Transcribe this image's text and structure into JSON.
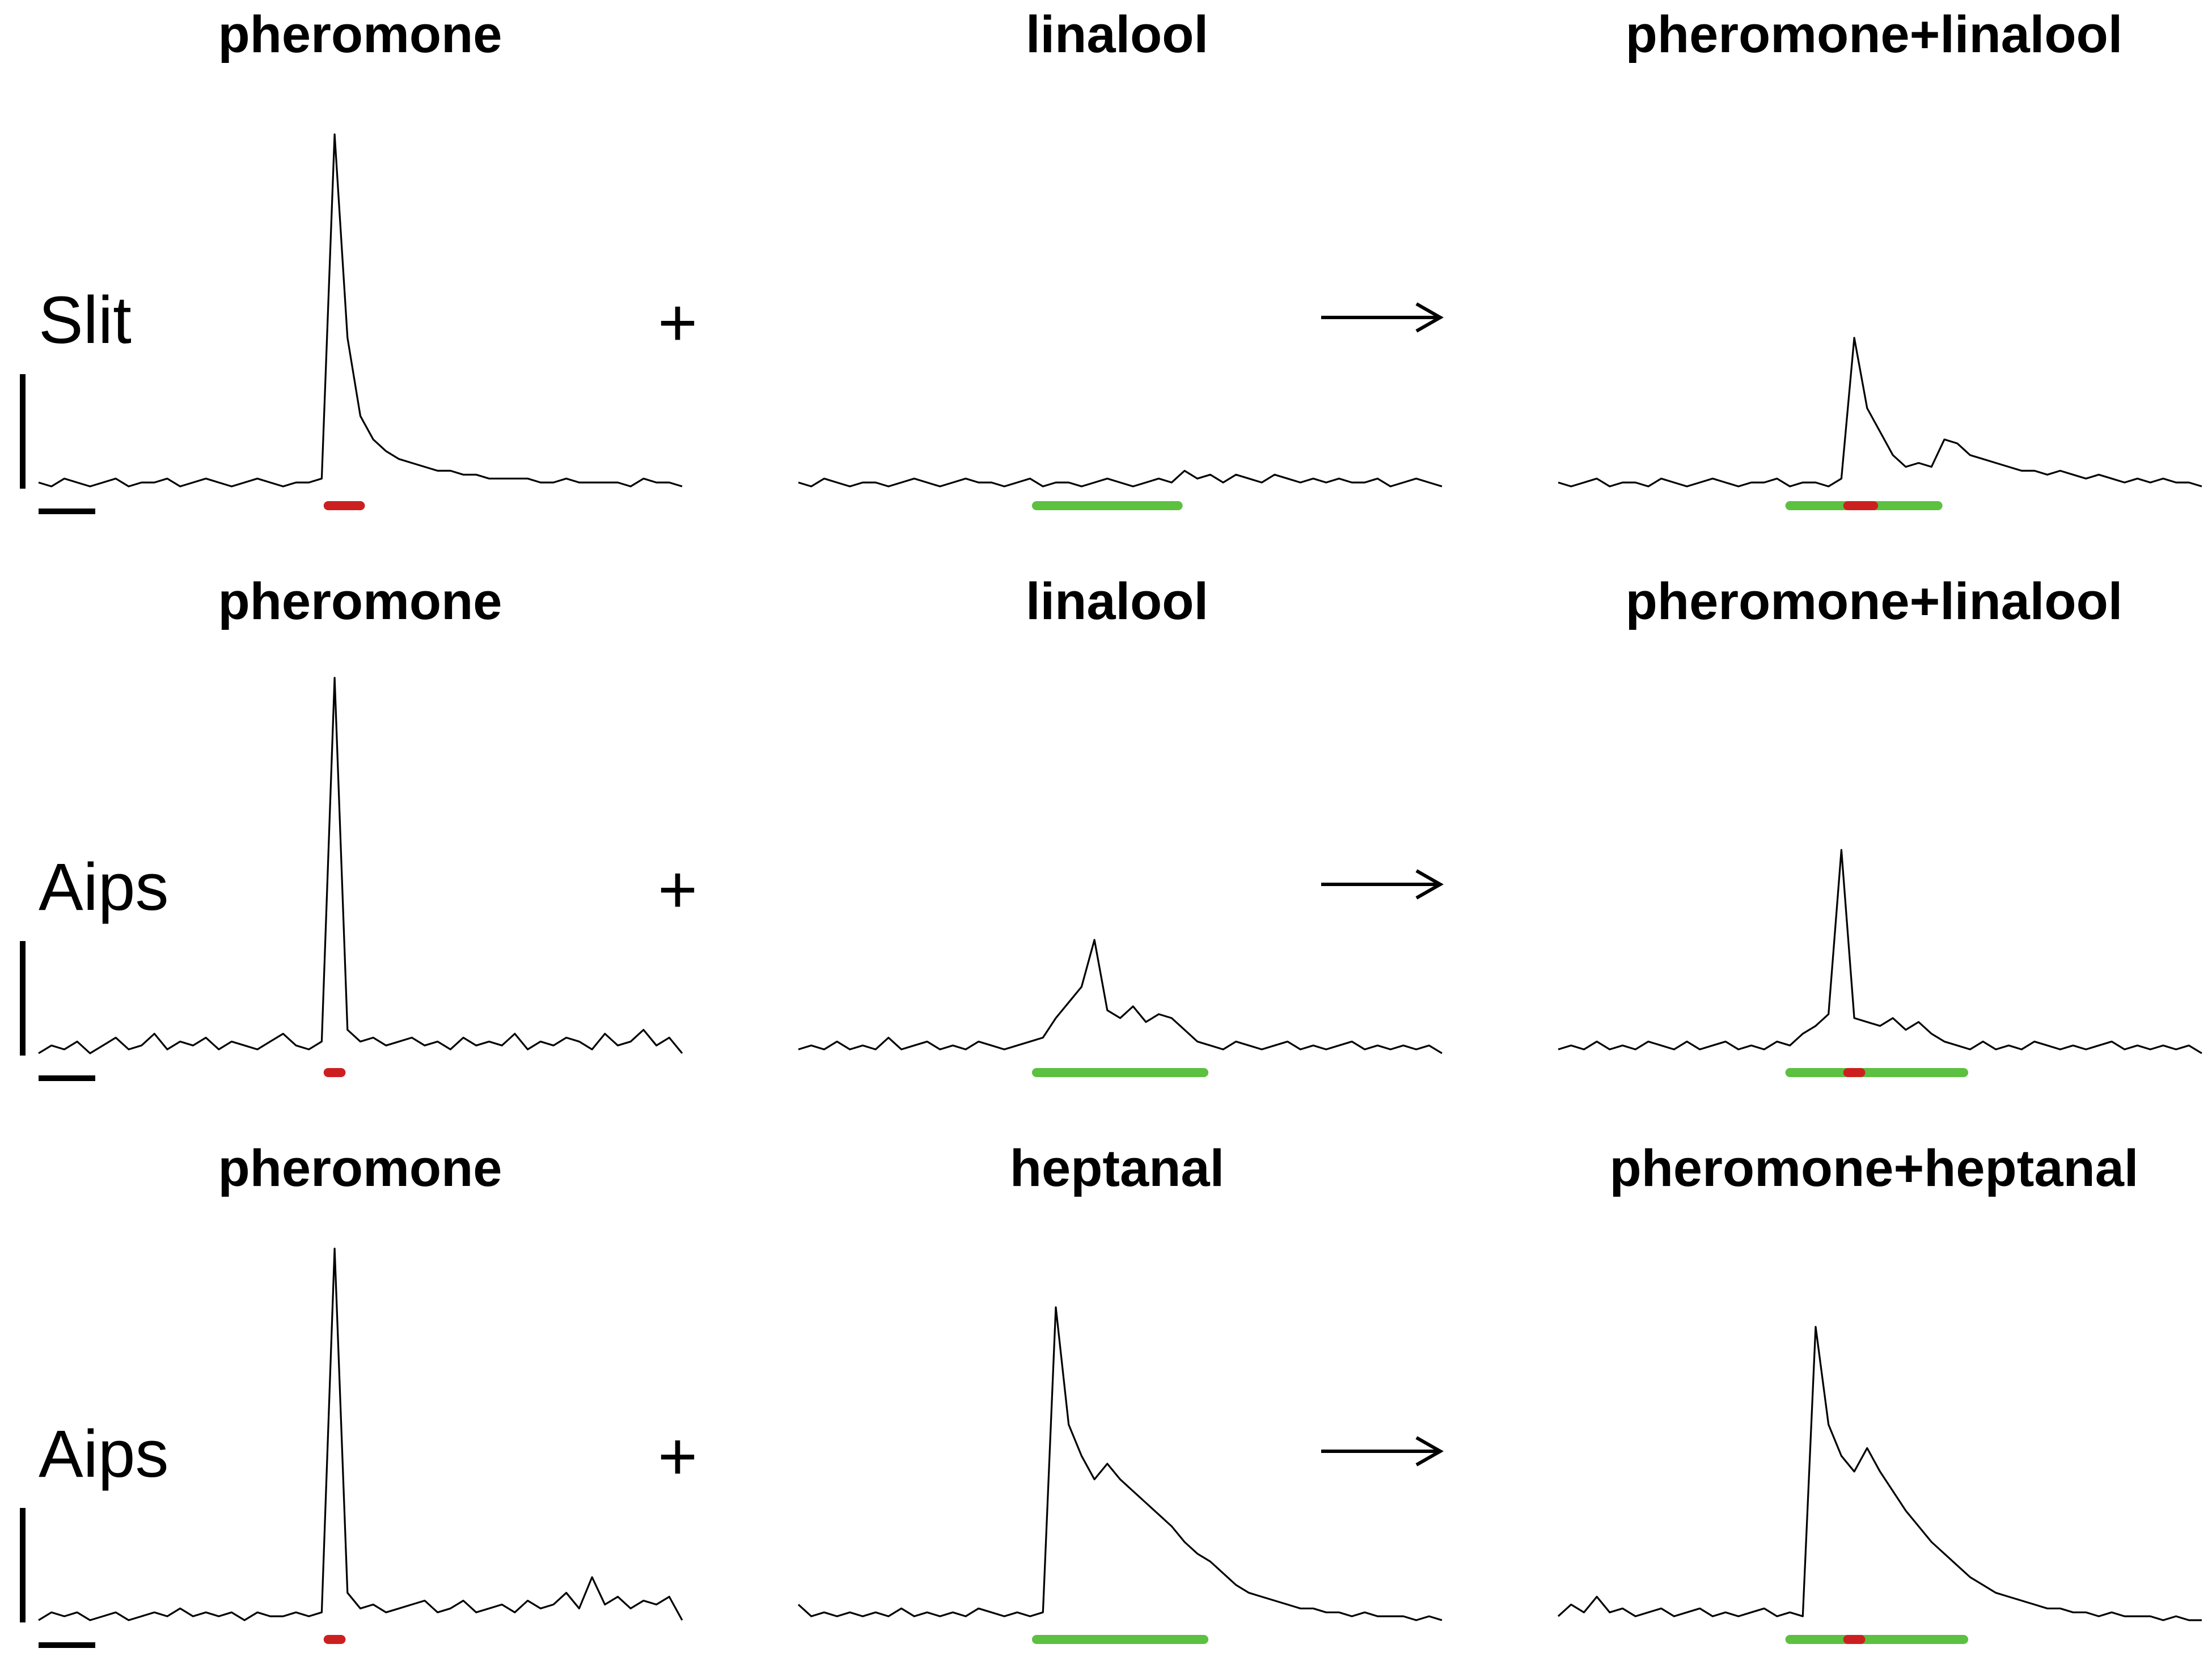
{
  "colors": {
    "pheromone_stimulus": "#cc2020",
    "odor_stimulus": "#5cc040",
    "trace": "#000000"
  },
  "chart_data": {
    "type": "line",
    "title": "",
    "xlabel": "",
    "ylabel": "",
    "grid": false,
    "x": [
      0,
      2,
      4,
      6,
      8,
      10,
      12,
      14,
      16,
      18,
      20,
      22,
      24,
      26,
      28,
      30,
      32,
      34,
      36,
      38,
      40,
      42,
      44,
      46,
      48,
      50,
      52,
      54,
      56,
      58,
      60,
      62,
      64,
      66,
      68,
      70,
      72,
      74,
      76,
      78,
      80,
      82,
      84,
      86,
      88,
      90,
      92,
      94,
      96,
      98,
      100
    ],
    "ylim": [
      0,
      1
    ],
    "rows": [
      {
        "label": "Slit",
        "plus_symbol": "+",
        "arrow_symbol": "→",
        "panels": [
          {
            "title": "pheromone",
            "stimuli": [
              {
                "type": "pheromone",
                "start": 45,
                "end": 50
              }
            ],
            "values": [
              0.01,
              0.0,
              0.02,
              0.01,
              0.0,
              0.01,
              0.02,
              0.0,
              0.01,
              0.01,
              0.02,
              0.0,
              0.01,
              0.02,
              0.01,
              0.0,
              0.01,
              0.02,
              0.01,
              0.0,
              0.01,
              0.01,
              0.02,
              0.9,
              0.38,
              0.18,
              0.12,
              0.09,
              0.07,
              0.06,
              0.05,
              0.04,
              0.04,
              0.03,
              0.03,
              0.02,
              0.02,
              0.02,
              0.02,
              0.01,
              0.01,
              0.02,
              0.01,
              0.01,
              0.01,
              0.01,
              0.0,
              0.02,
              0.01,
              0.01,
              0.0
            ]
          },
          {
            "title": "linalool",
            "stimuli": [
              {
                "type": "odor",
                "start": 37,
                "end": 59
              }
            ],
            "values": [
              0.01,
              0.0,
              0.02,
              0.01,
              0.0,
              0.01,
              0.01,
              0.0,
              0.01,
              0.02,
              0.01,
              0.0,
              0.01,
              0.02,
              0.01,
              0.01,
              0.0,
              0.01,
              0.02,
              0.0,
              0.01,
              0.01,
              0.0,
              0.01,
              0.02,
              0.01,
              0.0,
              0.01,
              0.02,
              0.01,
              0.04,
              0.02,
              0.03,
              0.01,
              0.03,
              0.02,
              0.01,
              0.03,
              0.02,
              0.01,
              0.02,
              0.01,
              0.02,
              0.01,
              0.01,
              0.02,
              0.0,
              0.01,
              0.02,
              0.01,
              0.0
            ]
          },
          {
            "title": "pheromone+linalool",
            "stimuli": [
              {
                "type": "odor",
                "start": 36,
                "end": 59
              },
              {
                "type": "pheromone",
                "start": 45,
                "end": 49
              }
            ],
            "values": [
              0.01,
              0.0,
              0.01,
              0.02,
              0.0,
              0.01,
              0.01,
              0.0,
              0.02,
              0.01,
              0.0,
              0.01,
              0.02,
              0.01,
              0.0,
              0.01,
              0.01,
              0.02,
              0.0,
              0.01,
              0.01,
              0.0,
              0.02,
              0.38,
              0.2,
              0.14,
              0.08,
              0.05,
              0.06,
              0.05,
              0.12,
              0.11,
              0.08,
              0.07,
              0.06,
              0.05,
              0.04,
              0.04,
              0.03,
              0.04,
              0.03,
              0.02,
              0.03,
              0.02,
              0.01,
              0.02,
              0.01,
              0.02,
              0.01,
              0.01,
              0.0
            ]
          }
        ]
      },
      {
        "label": "Aips",
        "plus_symbol": "+",
        "arrow_symbol": "→",
        "panels": [
          {
            "title": "pheromone",
            "stimuli": [
              {
                "type": "pheromone",
                "start": 45,
                "end": 47
              }
            ],
            "values": [
              0.0,
              0.02,
              0.01,
              0.03,
              0.0,
              0.02,
              0.04,
              0.01,
              0.02,
              0.05,
              0.01,
              0.03,
              0.02,
              0.04,
              0.01,
              0.03,
              0.02,
              0.01,
              0.03,
              0.05,
              0.02,
              0.01,
              0.03,
              0.96,
              0.06,
              0.03,
              0.04,
              0.02,
              0.03,
              0.04,
              0.02,
              0.03,
              0.01,
              0.04,
              0.02,
              0.03,
              0.02,
              0.05,
              0.01,
              0.03,
              0.02,
              0.04,
              0.03,
              0.01,
              0.05,
              0.02,
              0.03,
              0.06,
              0.02,
              0.04,
              0.0
            ]
          },
          {
            "title": "linalool",
            "stimuli": [
              {
                "type": "odor",
                "start": 37,
                "end": 63
              }
            ],
            "values": [
              0.01,
              0.02,
              0.01,
              0.03,
              0.01,
              0.02,
              0.01,
              0.04,
              0.01,
              0.02,
              0.03,
              0.01,
              0.02,
              0.01,
              0.03,
              0.02,
              0.01,
              0.02,
              0.03,
              0.04,
              0.09,
              0.13,
              0.17,
              0.29,
              0.11,
              0.09,
              0.12,
              0.08,
              0.1,
              0.09,
              0.06,
              0.03,
              0.02,
              0.01,
              0.03,
              0.02,
              0.01,
              0.02,
              0.03,
              0.01,
              0.02,
              0.01,
              0.02,
              0.03,
              0.01,
              0.02,
              0.01,
              0.02,
              0.01,
              0.02,
              0.0
            ]
          },
          {
            "title": "pheromone+linalool",
            "stimuli": [
              {
                "type": "odor",
                "start": 36,
                "end": 63
              },
              {
                "type": "pheromone",
                "start": 45,
                "end": 47
              }
            ],
            "values": [
              0.01,
              0.02,
              0.01,
              0.03,
              0.01,
              0.02,
              0.01,
              0.03,
              0.02,
              0.01,
              0.03,
              0.01,
              0.02,
              0.03,
              0.01,
              0.02,
              0.01,
              0.03,
              0.02,
              0.05,
              0.07,
              0.1,
              0.52,
              0.09,
              0.08,
              0.07,
              0.09,
              0.06,
              0.08,
              0.05,
              0.03,
              0.02,
              0.01,
              0.03,
              0.01,
              0.02,
              0.01,
              0.03,
              0.02,
              0.01,
              0.02,
              0.01,
              0.02,
              0.03,
              0.01,
              0.02,
              0.01,
              0.02,
              0.01,
              0.02,
              0.0
            ]
          }
        ]
      },
      {
        "label": "Aips",
        "plus_symbol": "+",
        "arrow_symbol": "→",
        "panels": [
          {
            "title": "pheromone",
            "stimuli": [
              {
                "type": "pheromone",
                "start": 45,
                "end": 47
              }
            ],
            "values": [
              0.0,
              0.02,
              0.01,
              0.02,
              0.0,
              0.01,
              0.02,
              0.0,
              0.01,
              0.02,
              0.01,
              0.03,
              0.01,
              0.02,
              0.01,
              0.02,
              0.0,
              0.02,
              0.01,
              0.01,
              0.02,
              0.01,
              0.02,
              0.95,
              0.07,
              0.03,
              0.04,
              0.02,
              0.03,
              0.04,
              0.05,
              0.02,
              0.03,
              0.05,
              0.02,
              0.03,
              0.04,
              0.02,
              0.05,
              0.03,
              0.04,
              0.07,
              0.03,
              0.11,
              0.04,
              0.06,
              0.03,
              0.05,
              0.04,
              0.06,
              0.0
            ]
          },
          {
            "title": "heptanal",
            "stimuli": [
              {
                "type": "odor",
                "start": 37,
                "end": 63
              }
            ],
            "values": [
              0.04,
              0.01,
              0.02,
              0.01,
              0.02,
              0.01,
              0.02,
              0.01,
              0.03,
              0.01,
              0.02,
              0.01,
              0.02,
              0.01,
              0.03,
              0.02,
              0.01,
              0.02,
              0.01,
              0.02,
              0.8,
              0.5,
              0.42,
              0.36,
              0.4,
              0.36,
              0.33,
              0.3,
              0.27,
              0.24,
              0.2,
              0.17,
              0.15,
              0.12,
              0.09,
              0.07,
              0.06,
              0.05,
              0.04,
              0.03,
              0.03,
              0.02,
              0.02,
              0.01,
              0.02,
              0.01,
              0.01,
              0.01,
              0.0,
              0.01,
              0.0
            ]
          },
          {
            "title": "pheromone+heptanal",
            "stimuli": [
              {
                "type": "odor",
                "start": 36,
                "end": 63
              },
              {
                "type": "pheromone",
                "start": 45,
                "end": 47
              }
            ],
            "values": [
              0.01,
              0.04,
              0.02,
              0.06,
              0.02,
              0.03,
              0.01,
              0.02,
              0.03,
              0.01,
              0.02,
              0.03,
              0.01,
              0.02,
              0.01,
              0.02,
              0.03,
              0.01,
              0.02,
              0.01,
              0.75,
              0.5,
              0.42,
              0.38,
              0.44,
              0.38,
              0.33,
              0.28,
              0.24,
              0.2,
              0.17,
              0.14,
              0.11,
              0.09,
              0.07,
              0.06,
              0.05,
              0.04,
              0.03,
              0.03,
              0.02,
              0.02,
              0.01,
              0.02,
              0.01,
              0.01,
              0.01,
              0.0,
              0.01,
              0.0,
              0.0
            ]
          }
        ]
      }
    ]
  }
}
